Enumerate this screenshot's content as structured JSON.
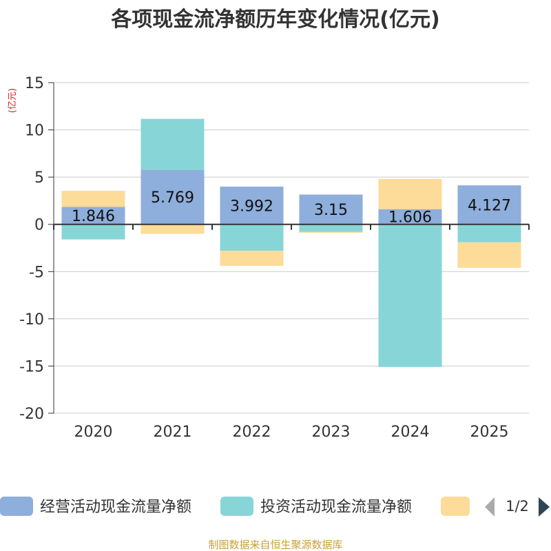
{
  "chart_data": {
    "type": "bar",
    "stacked": true,
    "title": "各项现金流净额历年变化情况(亿元)",
    "ylabel": "(亿元)",
    "categories": [
      "2020",
      "2021",
      "2022",
      "2023",
      "2024",
      "2025"
    ],
    "ylim": [
      -20,
      15
    ],
    "yticks": [
      15,
      10,
      5,
      0,
      -5,
      -10,
      -15,
      -20
    ],
    "ytick_labels": [
      "15",
      "10",
      "5",
      "0",
      "-5",
      "-10",
      "-15",
      "-20"
    ],
    "series": [
      {
        "name": "经营活动现金流量净额",
        "color": "#8eaedb",
        "values": [
          1.846,
          5.769,
          3.992,
          3.15,
          1.606,
          4.127
        ],
        "labels": [
          "1.846",
          "5.769",
          "3.992",
          "3.15",
          "1.606",
          "4.127"
        ]
      },
      {
        "name": "投资活动现金流量净额",
        "color": "#88d5d8",
        "values": [
          -1.6,
          5.4,
          -2.8,
          -0.8,
          -15.1,
          -1.9
        ]
      },
      {
        "name": "",
        "color": "#fddb98",
        "values": [
          1.7,
          -1.0,
          -1.6,
          -0.1,
          3.2,
          -2.7
        ]
      }
    ],
    "legend_position": "bottom"
  },
  "legend": {
    "page_indicator": "1/2"
  },
  "footer": {
    "source": "制图数据来自恒生聚源数据库"
  }
}
